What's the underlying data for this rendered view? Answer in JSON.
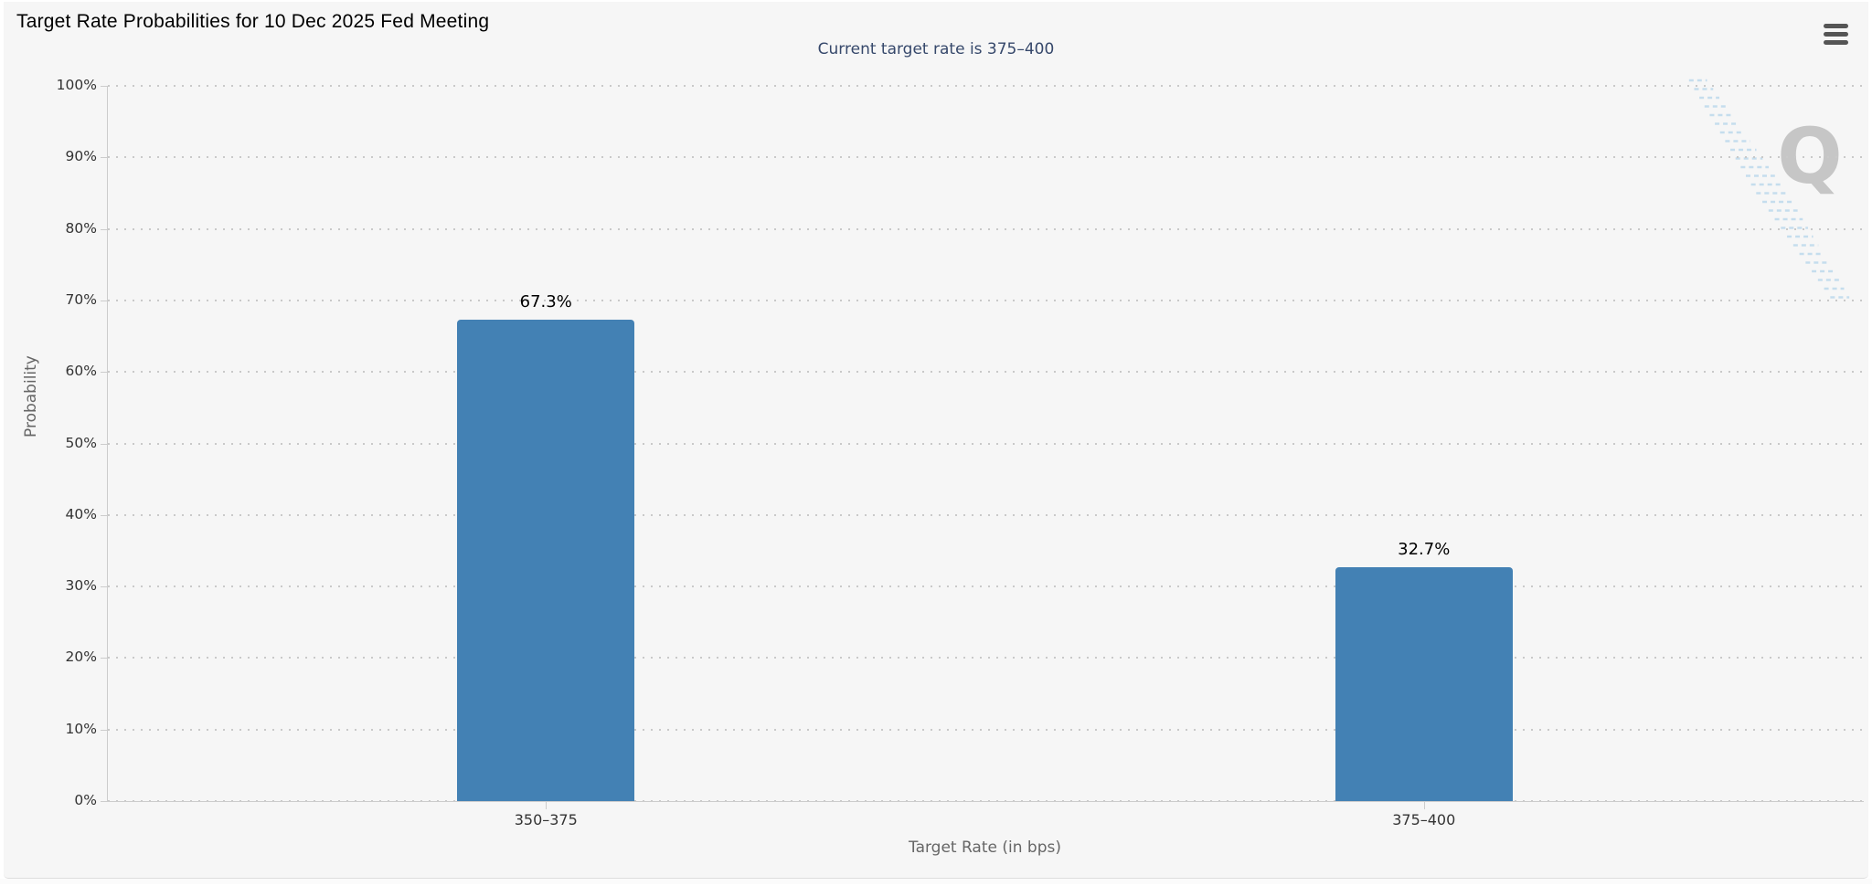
{
  "header": {
    "title": "Target Rate Probabilities for 10 Dec 2025 Fed Meeting",
    "menu_icon": "hamburger-menu"
  },
  "chart_data": {
    "type": "bar",
    "title": "Target Rate Probabilities for 10 Dec 2025 Fed Meeting",
    "subtitle": "Current target rate is 375–400",
    "xlabel": "Target Rate (in bps)",
    "ylabel": "Probability",
    "categories": [
      "350–375",
      "375–400"
    ],
    "values": [
      67.3,
      32.7
    ],
    "value_labels": [
      "67.3%",
      "32.7%"
    ],
    "ylim": [
      0,
      100
    ],
    "ytick_step": 10,
    "ytick_labels": [
      "0%",
      "10%",
      "20%",
      "30%",
      "40%",
      "50%",
      "60%",
      "70%",
      "80%",
      "90%",
      "100%"
    ],
    "grid": "horizontal-dotted",
    "legend": "none",
    "bar_color": "#4381b4",
    "watermark_letter": "Q"
  },
  "colors": {
    "panel_bg": "#f6f6f6",
    "bar": "#4381b4",
    "title": "#000000",
    "subtitle": "#36486b",
    "axis_label": "#333333",
    "axis_title": "#666666",
    "grid_dots": "#c9c9c9",
    "axis_line": "#cccccc",
    "menu_icon": "#555555",
    "watermark_q": "#a0a0a0",
    "watermark_hatch": "#b9d7ec"
  }
}
